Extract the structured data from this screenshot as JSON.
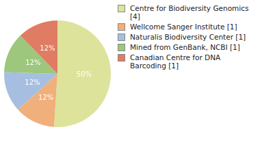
{
  "chart_data": {
    "type": "pie",
    "categories": [
      "Centre for Biodiversity Genomics [4]",
      "Wellcome Sanger Institute [1]",
      "Naturalis Biodiversity Center [1]",
      "Mined from GenBank, NCBI [1]",
      "Canadian Centre for DNA Barcoding [1]"
    ],
    "values": [
      50,
      12,
      12,
      12,
      12
    ],
    "value_labels": [
      "50%",
      "12%",
      "12%",
      "12%",
      "12%"
    ],
    "colors": [
      "#dde39a",
      "#f0b07c",
      "#a6bfe0",
      "#9cc77c",
      "#e07c64"
    ],
    "data_labels": true,
    "legend": "right"
  }
}
